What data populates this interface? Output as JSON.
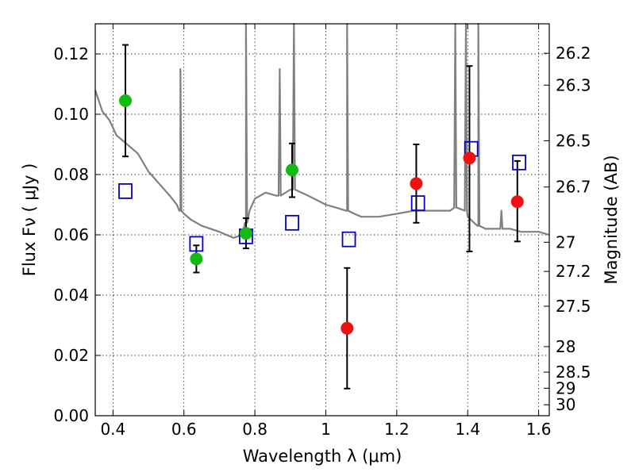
{
  "chart_data": {
    "type": "scatter",
    "xlabel": "Wavelength  λ (μm)",
    "ylabel": "Flux  Fν  ( μJy )",
    "ylabel2": "Magnitude (AB)",
    "xlim": [
      0.35,
      1.63
    ],
    "ylim": [
      0.0,
      0.13
    ],
    "grid": true,
    "xticks": [
      {
        "value": 0.4,
        "label": "0.4"
      },
      {
        "value": 0.6,
        "label": "0.6"
      },
      {
        "value": 0.8,
        "label": "0.8"
      },
      {
        "value": 1.0,
        "label": "1"
      },
      {
        "value": 1.2,
        "label": "1.2"
      },
      {
        "value": 1.4,
        "label": "1.4"
      },
      {
        "value": 1.6,
        "label": "1.6"
      }
    ],
    "yticks": [
      {
        "value": 0.0,
        "label": "0.00"
      },
      {
        "value": 0.02,
        "label": "0.02"
      },
      {
        "value": 0.04,
        "label": "0.04"
      },
      {
        "value": 0.06,
        "label": "0.06"
      },
      {
        "value": 0.08,
        "label": "0.08"
      },
      {
        "value": 0.1,
        "label": "0.10"
      },
      {
        "value": 0.12,
        "label": "0.12"
      }
    ],
    "magticks": [
      {
        "value": 26.2,
        "label": "26.2"
      },
      {
        "value": 26.3,
        "label": "26.3"
      },
      {
        "value": 26.5,
        "label": "26.5"
      },
      {
        "value": 26.7,
        "label": "26.7"
      },
      {
        "value": 27.0,
        "label": "27"
      },
      {
        "value": 27.2,
        "label": "27.2"
      },
      {
        "value": 27.5,
        "label": "27.5"
      },
      {
        "value": 28.0,
        "label": "28"
      },
      {
        "value": 28.5,
        "label": "28.5"
      },
      {
        "value": 29.0,
        "label": "29"
      },
      {
        "value": 30.0,
        "label": "30"
      }
    ],
    "colors": {
      "green": "#11bb11",
      "red": "#ee1111",
      "model_box": "#0000cc",
      "spectrum": "#808080",
      "errorbar": "#000000"
    },
    "series": [
      {
        "kind": "points",
        "color": "green",
        "x": [
          0.435,
          0.635,
          0.775,
          0.905
        ],
        "y": [
          0.1045,
          0.052,
          0.0605,
          0.0815
        ],
        "err_lo": [
          0.086,
          0.0475,
          0.0555,
          0.0725
        ],
        "err_hi": [
          0.123,
          0.0565,
          0.0655,
          0.0903
        ]
      },
      {
        "kind": "points",
        "color": "red",
        "x": [
          1.06,
          1.255,
          1.405,
          1.54
        ],
        "y": [
          0.029,
          0.077,
          0.0855,
          0.071
        ],
        "err_lo": [
          0.009,
          0.064,
          0.0545,
          0.0578
        ],
        "err_hi": [
          0.049,
          0.09,
          0.116,
          0.0845
        ]
      },
      {
        "kind": "model_boxes",
        "x": [
          0.435,
          0.635,
          0.775,
          0.905,
          1.065,
          1.26,
          1.41,
          1.545
        ],
        "y": [
          0.0745,
          0.057,
          0.0595,
          0.064,
          0.0585,
          0.0705,
          0.0885,
          0.084
        ]
      },
      {
        "kind": "spectrum",
        "x": [
          0.35,
          0.37,
          0.39,
          0.41,
          0.43,
          0.45,
          0.47,
          0.5,
          0.53,
          0.56,
          0.58,
          0.59,
          0.6,
          0.62,
          0.65,
          0.7,
          0.74,
          0.765,
          0.775,
          0.785,
          0.8,
          0.83,
          0.86,
          0.9,
          0.95,
          1.0,
          1.03,
          1.06,
          1.08,
          1.1,
          1.15,
          1.2,
          1.25,
          1.3,
          1.35,
          1.37,
          1.4,
          1.43,
          1.45,
          1.5,
          1.52,
          1.55,
          1.6,
          1.63
        ],
        "y": [
          0.108,
          0.101,
          0.098,
          0.093,
          0.091,
          0.089,
          0.087,
          0.081,
          0.077,
          0.073,
          0.07,
          0.068,
          0.067,
          0.065,
          0.063,
          0.061,
          0.059,
          0.06,
          0.064,
          0.068,
          0.072,
          0.074,
          0.073,
          0.075,
          0.073,
          0.07,
          0.069,
          0.068,
          0.067,
          0.066,
          0.066,
          0.067,
          0.068,
          0.068,
          0.068,
          0.069,
          0.066,
          0.063,
          0.062,
          0.062,
          0.062,
          0.061,
          0.061,
          0.06
        ],
        "lines": [
          {
            "x": 0.59,
            "base": 0.068,
            "peak": 0.115
          },
          {
            "x": 0.775,
            "base": 0.064,
            "peak": 0.13
          },
          {
            "x": 0.87,
            "base": 0.073,
            "peak": 0.115
          },
          {
            "x": 0.91,
            "base": 0.075,
            "peak": 0.13
          },
          {
            "x": 1.06,
            "base": 0.068,
            "peak": 0.13
          },
          {
            "x": 1.365,
            "base": 0.069,
            "peak": 0.13
          },
          {
            "x": 1.395,
            "base": 0.068,
            "peak": 0.13
          },
          {
            "x": 1.43,
            "base": 0.063,
            "peak": 0.13
          },
          {
            "x": 1.495,
            "base": 0.062,
            "peak": 0.068
          }
        ]
      }
    ]
  }
}
